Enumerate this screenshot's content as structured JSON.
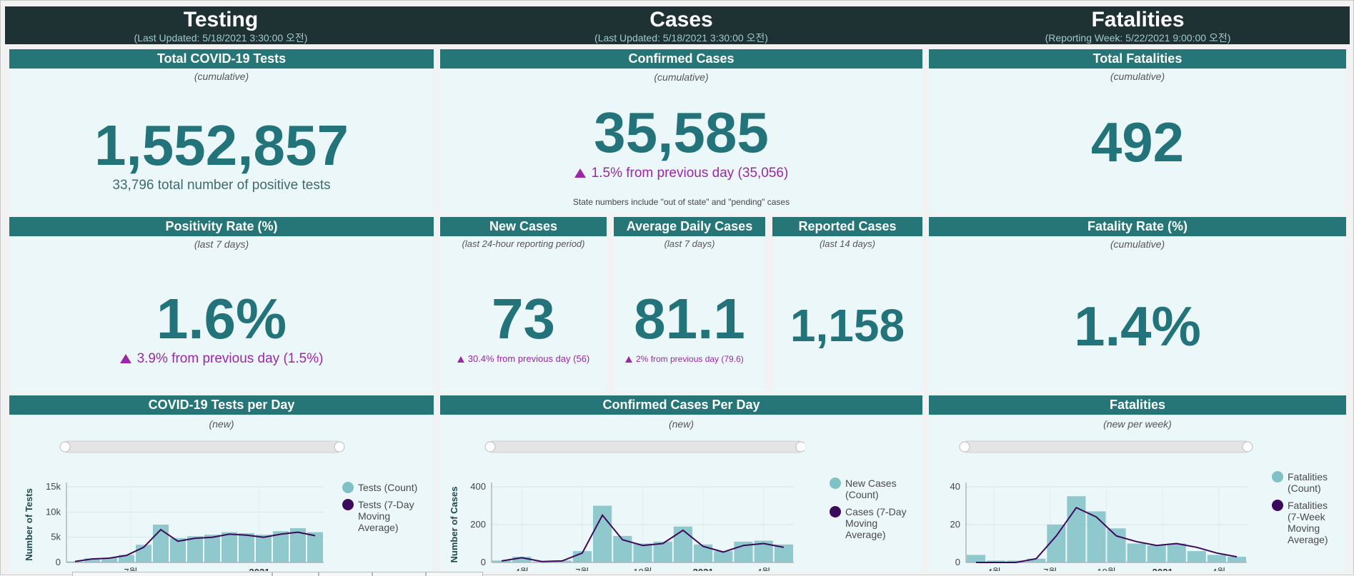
{
  "colors": {
    "dark": "#1e3233",
    "teal": "#267577",
    "panel": "#ecf7f9",
    "big": "#22747a",
    "change": "#9c27a8",
    "bar": "#7fc1c5",
    "line": "#3c0a5c"
  },
  "testing": {
    "title": "Testing",
    "updated": "(Last Updated: 5/18/2021 3:30:00 오전)",
    "total": {
      "title": "Total COVID-19 Tests",
      "sub": "(cumulative)",
      "value": "1,552,857",
      "note": "33,796 total number of positive tests"
    },
    "positivity": {
      "title": "Positivity Rate (%)",
      "sub": "(last 7 days)",
      "value": "1.6%",
      "change": "3.9% from previous day (1.5%)"
    },
    "perday": {
      "title": "COVID-19 Tests per Day",
      "sub": "(new)"
    }
  },
  "cases": {
    "title": "Cases",
    "updated": "(Last Updated: 5/18/2021 3:30:00 오전)",
    "confirmed": {
      "title": "Confirmed Cases",
      "sub": "(cumulative)",
      "value": "35,585",
      "change": "1.5% from previous day (35,056)",
      "note": "State numbers include \"out of state\" and \"pending\" cases"
    },
    "new": {
      "title": "New Cases",
      "sub": "(last 24-hour reporting period)",
      "value": "73",
      "change": "30.4% from previous day (56)"
    },
    "avg": {
      "title": "Average Daily Cases",
      "sub": "(last 7 days)",
      "value": "81.1",
      "change": "2% from previous day (79.6)"
    },
    "reported": {
      "title": "Reported Cases",
      "sub": "(last 14 days)",
      "value": "1,158"
    },
    "perday": {
      "title": "Confirmed Cases Per Day",
      "sub": "(new)"
    }
  },
  "fatalities": {
    "title": "Fatalities",
    "updated": "(Reporting Week: 5/22/2021 9:00:00 오전)",
    "total": {
      "title": "Total Fatalities",
      "sub": "(cumulative)",
      "value": "492"
    },
    "rate": {
      "title": "Fatality Rate (%)",
      "sub": "(cumulative)",
      "value": "1.4%"
    },
    "chart": {
      "title": "Fatalities",
      "sub": "(new per week)"
    }
  },
  "chart_data": [
    {
      "type": "bar",
      "title": "COVID-19 Tests per Day",
      "ylabel": "Number of Tests",
      "ylim": [
        0,
        15000
      ],
      "yticks": [
        "0",
        "5k",
        "10k",
        "15k"
      ],
      "xticks": [
        "7월",
        "2021"
      ],
      "x": [
        "2020-03",
        "2020-04",
        "2020-05",
        "2020-06",
        "2020-07",
        "2020-08",
        "2020-09",
        "2020-10",
        "2020-11",
        "2020-12",
        "2021-01",
        "2021-02",
        "2021-03",
        "2021-04",
        "2021-05"
      ],
      "series": [
        {
          "name": "Tests (Count)",
          "legend": [
            "Tests (Count)"
          ],
          "values": [
            200,
            800,
            900,
            1500,
            3500,
            7500,
            4800,
            5200,
            5500,
            6000,
            5800,
            5500,
            6200,
            6800,
            6000
          ]
        },
        {
          "name": "Tests (7-Day Moving Average)",
          "legend": [
            "Tests (7-Day",
            "Moving",
            "Average)"
          ],
          "values": [
            200,
            700,
            850,
            1400,
            3000,
            6500,
            4200,
            4800,
            5000,
            5600,
            5400,
            5000,
            5600,
            6000,
            5300
          ]
        }
      ]
    },
    {
      "type": "bar",
      "title": "Confirmed Cases Per Day",
      "ylabel": "Number of Cases",
      "ylim": [
        0,
        400
      ],
      "yticks": [
        "0",
        "200",
        "400"
      ],
      "xticks": [
        "4월",
        "7월",
        "10월",
        "2021",
        "4월"
      ],
      "x": [
        "2020-03",
        "2020-04",
        "2020-05",
        "2020-06",
        "2020-07",
        "2020-08",
        "2020-09",
        "2020-10",
        "2020-11",
        "2020-12",
        "2021-01",
        "2021-02",
        "2021-03",
        "2021-04",
        "2021-05"
      ],
      "series": [
        {
          "name": "New Cases (Count)",
          "legend": [
            "New Cases",
            "(Count)"
          ],
          "values": [
            10,
            30,
            5,
            10,
            60,
            300,
            140,
            100,
            110,
            190,
            95,
            60,
            110,
            115,
            95
          ]
        },
        {
          "name": "Cases (7-Day Moving Average)",
          "legend": [
            "Cases (7-Day",
            "Moving",
            "Average)"
          ],
          "values": [
            8,
            25,
            5,
            8,
            50,
            250,
            120,
            90,
            100,
            170,
            85,
            55,
            90,
            100,
            80
          ]
        }
      ]
    },
    {
      "type": "bar",
      "title": "Fatalities",
      "ylabel": "",
      "ylim": [
        0,
        40
      ],
      "yticks": [
        "0",
        "20",
        "40"
      ],
      "xticks": [
        "4월",
        "7월",
        "10월",
        "2021",
        "4월"
      ],
      "x": [
        "2020-04",
        "2020-05",
        "2020-06",
        "2020-07",
        "2020-08",
        "2020-09",
        "2020-10",
        "2020-11",
        "2020-12",
        "2021-01",
        "2021-02",
        "2021-03",
        "2021-04",
        "2021-05"
      ],
      "series": [
        {
          "name": "Fatalities (Count)",
          "legend": [
            "Fatalities",
            "(Count)"
          ],
          "values": [
            4,
            1,
            1,
            2,
            20,
            35,
            27,
            18,
            10,
            9,
            10,
            6,
            4,
            3
          ]
        },
        {
          "name": "Fatalities (7-Week Moving Average)",
          "legend": [
            "Fatalities",
            "(7-Week",
            "Moving",
            "Average)"
          ],
          "values": [
            0,
            0,
            0,
            2,
            14,
            29,
            24,
            14,
            11,
            9,
            10,
            8,
            5,
            3
          ]
        }
      ]
    }
  ]
}
